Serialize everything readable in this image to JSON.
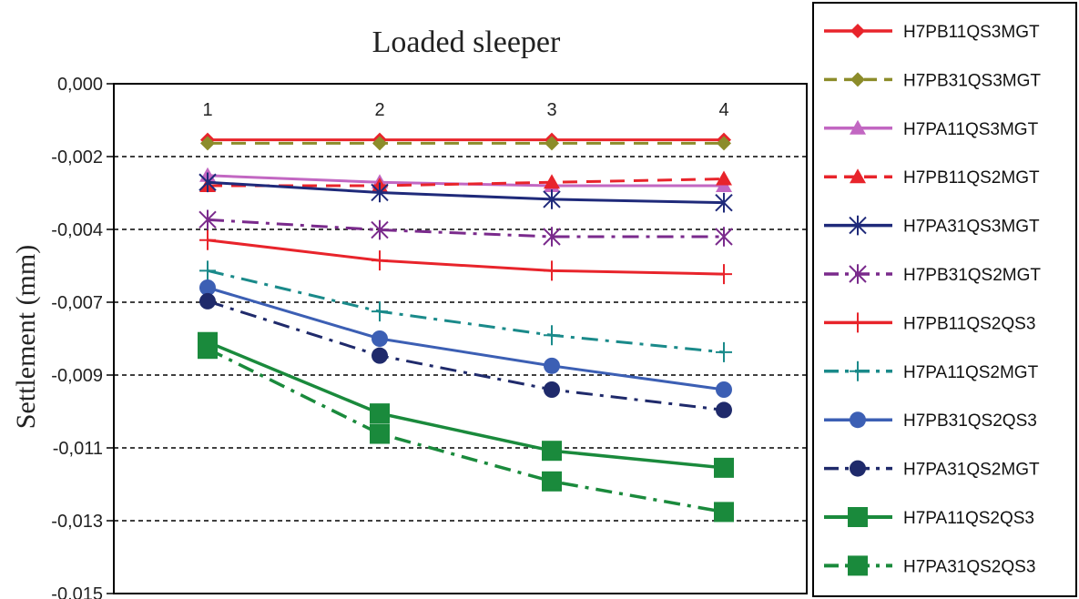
{
  "chart_data": {
    "type": "line",
    "title": "Loaded sleeper",
    "xlabel": "",
    "ylabel": "Settlement (mm)",
    "x": [
      1,
      2,
      3,
      4
    ],
    "x_tick_labels": [
      "1",
      "2",
      "3",
      "4"
    ],
    "x_axis_position": "top",
    "ylim": [
      -0.015,
      0.0
    ],
    "y_tick_labels": [
      "0,000",
      "-0,002",
      "-0,004",
      "-0,007",
      "-0,009",
      "-0,011",
      "-0,013",
      "-0,015"
    ],
    "grid": "horizontal dashed",
    "legend_position": "right",
    "series": [
      {
        "name": "H7PB11QS3MGT",
        "values": [
          -0.00165,
          -0.00165,
          -0.00165,
          -0.00165
        ],
        "color": "#e8242b",
        "line": "solid",
        "marker": "diamond"
      },
      {
        "name": "H7PB31QS3MGT",
        "values": [
          -0.00175,
          -0.00175,
          -0.00175,
          -0.00175
        ],
        "color": "#8c8c2a",
        "line": "dash",
        "marker": "diamond"
      },
      {
        "name": "H7PA11QS3MGT",
        "values": [
          -0.0027,
          -0.0029,
          -0.003,
          -0.003
        ],
        "color": "#c267c2",
        "line": "solid",
        "marker": "triangle"
      },
      {
        "name": "H7PB11QS2MGT",
        "values": [
          -0.003,
          -0.003,
          -0.0029,
          -0.0028
        ],
        "color": "#e8242b",
        "line": "dash",
        "marker": "triangle"
      },
      {
        "name": "H7PA31QS3MGT",
        "values": [
          -0.0029,
          -0.0032,
          -0.0034,
          -0.0035
        ],
        "color": "#1f2a7a",
        "line": "solid",
        "marker": "asterisk"
      },
      {
        "name": "H7PB31QS2MGT",
        "values": [
          -0.004,
          -0.0043,
          -0.0045,
          -0.0045
        ],
        "color": "#7a2a8c",
        "line": "dashdot",
        "marker": "asterisk"
      },
      {
        "name": "H7PB11QS2QS3",
        "values": [
          -0.0046,
          -0.0052,
          -0.0055,
          -0.0056
        ],
        "color": "#e8242b",
        "line": "solid",
        "marker": "plus"
      },
      {
        "name": "H7PA11QS2MGT",
        "values": [
          -0.0055,
          -0.0067,
          -0.0074,
          -0.0079
        ],
        "color": "#1a8a8a",
        "line": "dashdot",
        "marker": "plus"
      },
      {
        "name": "H7PB31QS2QS3",
        "values": [
          -0.006,
          -0.0075,
          -0.0083,
          -0.009
        ],
        "color": "#3c5fb4",
        "line": "solid",
        "marker": "circle"
      },
      {
        "name": "H7PA31QS2MGT",
        "values": [
          -0.0064,
          -0.008,
          -0.009,
          -0.0096
        ],
        "color": "#1f2a6b",
        "line": "dashdot",
        "marker": "circle"
      },
      {
        "name": "H7PA11QS2QS3",
        "values": [
          -0.0076,
          -0.0097,
          -0.0108,
          -0.0113
        ],
        "color": "#1a8a3c",
        "line": "solid",
        "marker": "square"
      },
      {
        "name": "H7PA31QS2QS3",
        "values": [
          -0.0078,
          -0.0103,
          -0.0117,
          -0.0126
        ],
        "color": "#1a8a3c",
        "line": "dashdot",
        "marker": "square"
      }
    ]
  }
}
